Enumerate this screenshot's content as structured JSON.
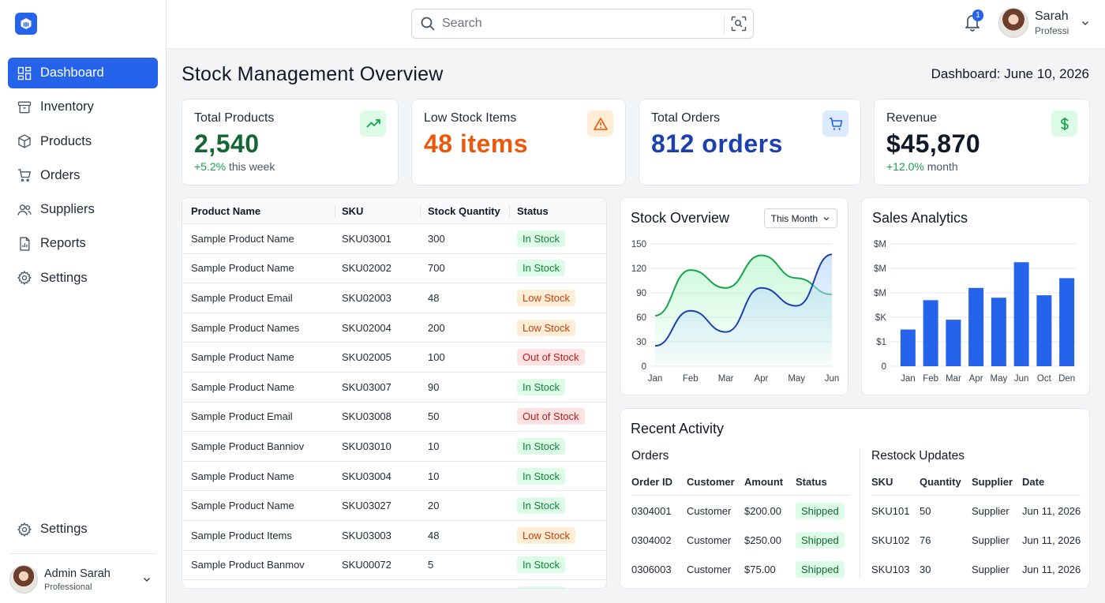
{
  "sidebar": {
    "items": [
      {
        "label": "Dashboard",
        "icon": "dashboard-icon",
        "active": true
      },
      {
        "label": "Inventory",
        "icon": "inventory-icon"
      },
      {
        "label": "Products",
        "icon": "box-icon"
      },
      {
        "label": "Orders",
        "icon": "cart-icon"
      },
      {
        "label": "Suppliers",
        "icon": "users-icon"
      },
      {
        "label": "Reports",
        "icon": "report-icon"
      },
      {
        "label": "Settings",
        "icon": "gear-icon"
      }
    ],
    "bottom_settings": "Settings",
    "user": {
      "name": "Admin Sarah",
      "role": "Professional"
    }
  },
  "topbar": {
    "search_placeholder": "Search",
    "notification_count": "1",
    "user_name": "Sarah",
    "user_role": "Professional"
  },
  "page": {
    "title": "Stock Management Overview",
    "date": "Dashboard: June 10, 2026"
  },
  "stats": [
    {
      "label": "Total Products",
      "value": "2,540",
      "pct": "+5.2%",
      "suffix": "this week",
      "color": "#166534",
      "badge_bg": "#dcfce7",
      "icon": "trend-up-icon"
    },
    {
      "label": "Low Stock Items",
      "value": "48 items",
      "pct": "",
      "suffix": "",
      "color": "#ea580c",
      "badge_bg": "#ffedd5",
      "icon": "warning-icon"
    },
    {
      "label": "Total Orders",
      "value": "812 orders",
      "pct": "",
      "suffix": "",
      "color": "#1e40af",
      "badge_bg": "#dbeafe",
      "icon": "cart-icon"
    },
    {
      "label": "Revenue",
      "value": "$45,870",
      "pct": "+12.0%",
      "suffix": "month",
      "color": "#111827",
      "badge_bg": "#dcfce7",
      "icon": "dollar-icon"
    }
  ],
  "product_table": {
    "headers": [
      "Product Name",
      "SKU",
      "Stock Quantity",
      "Status"
    ],
    "rows": [
      [
        "Sample Product Name",
        "SKU03001",
        "300",
        "In Stock"
      ],
      [
        "Sample Product Name",
        "SKU02002",
        "700",
        "In Stock"
      ],
      [
        "Sample Product Email",
        "SKU02003",
        "48",
        "Low Stock"
      ],
      [
        "Sample Product Names",
        "SKU02004",
        "200",
        "Low Stock"
      ],
      [
        "Sample Product Name",
        "SKU02005",
        "100",
        "Out of Stock"
      ],
      [
        "Sample Product Name",
        "SKU03007",
        "90",
        "In Stock"
      ],
      [
        "Sample Product Email",
        "SKU03008",
        "50",
        "Out of Stock"
      ],
      [
        "Sample Product Banniov",
        "SKU03010",
        "10",
        "In Stock"
      ],
      [
        "Sample Product Name",
        "SKU03004",
        "10",
        "In Stock"
      ],
      [
        "Sample Product Name",
        "SKU03027",
        "20",
        "In Stock"
      ],
      [
        "Sample Product Items",
        "SKU03003",
        "48",
        "Low Stock"
      ],
      [
        "Sample Product Banmov",
        "SKU00072",
        "5",
        "In Stock"
      ],
      [
        "",
        "",
        "",
        "In Stock"
      ]
    ]
  },
  "stock_overview": {
    "title": "Stock Overview",
    "range_label": "This Month"
  },
  "sales_analytics": {
    "title": "Sales Analytics"
  },
  "chart_data": [
    {
      "type": "line",
      "title": "Stock Overview",
      "x": [
        "Jan",
        "Feb",
        "Mar",
        "Apr",
        "May",
        "Jun"
      ],
      "ylim": [
        0,
        150
      ],
      "yticks": [
        "0",
        "30",
        "60",
        "90",
        "120",
        "150"
      ],
      "series": [
        {
          "values": [
            62,
            118,
            96,
            136,
            108,
            88
          ],
          "color": "#16a34a",
          "fill": "#bbf7d0"
        },
        {
          "values": [
            25,
            68,
            42,
            96,
            74,
            137
          ],
          "color": "#1e40af",
          "fill": "#bfdbfe"
        }
      ],
      "grid": true
    },
    {
      "type": "bar",
      "title": "Sales Analytics",
      "categories": [
        "Jan",
        "Feb",
        "Mar",
        "Apr",
        "May",
        "Jun",
        "Oct",
        "Den"
      ],
      "yticks": [
        "0",
        "$1",
        "$K",
        "$M",
        "$M",
        "$M"
      ],
      "ylim": [
        0,
        5
      ],
      "values": [
        1.5,
        2.7,
        1.9,
        3.2,
        2.8,
        4.25,
        2.9,
        3.6
      ],
      "color": "#2563eb",
      "grid": true
    }
  ],
  "recent_activity": {
    "title": "Recent Activity",
    "orders": {
      "title": "Orders",
      "headers": [
        "Order ID",
        "Customer",
        "Amount",
        "Status"
      ],
      "rows": [
        [
          "0304001",
          "Customer",
          "$200.00",
          "Shipped"
        ],
        [
          "0304002",
          "Customer",
          "$250.00",
          "Shipped"
        ],
        [
          "0306003",
          "Customer",
          "$75.00",
          "Shipped"
        ]
      ]
    },
    "restock": {
      "title": "Restock Updates",
      "headers": [
        "SKU",
        "Quantity",
        "Supplier",
        "Date"
      ],
      "rows": [
        [
          "SKU101",
          "50",
          "Supplier",
          "Jun 11, 2026"
        ],
        [
          "SKU102",
          "76",
          "Supplier",
          "Jun 11, 2026"
        ],
        [
          "SKU103",
          "30",
          "Supplier",
          "Jun 11, 2026"
        ]
      ]
    }
  }
}
